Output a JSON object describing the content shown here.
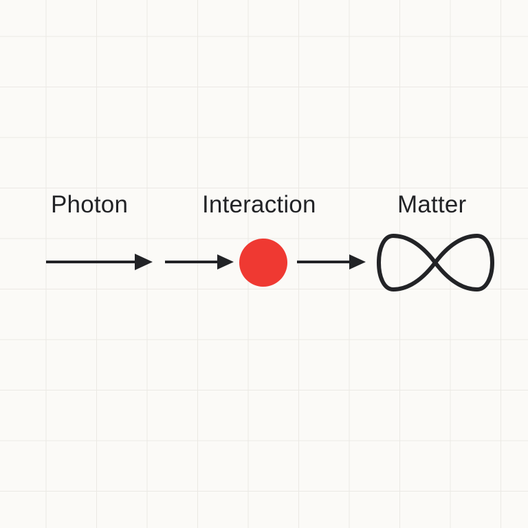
{
  "labels": {
    "photon": "Photon",
    "interaction": "Interaction",
    "matter": "Matter"
  },
  "icons": {
    "interaction_point": "red-dot-icon",
    "matter_symbol": "infinity-icon"
  },
  "colors": {
    "ink": "#222326",
    "interaction_dot": "#ef3932",
    "background": "#fbfaf7",
    "grid": "#ebe9e4"
  }
}
